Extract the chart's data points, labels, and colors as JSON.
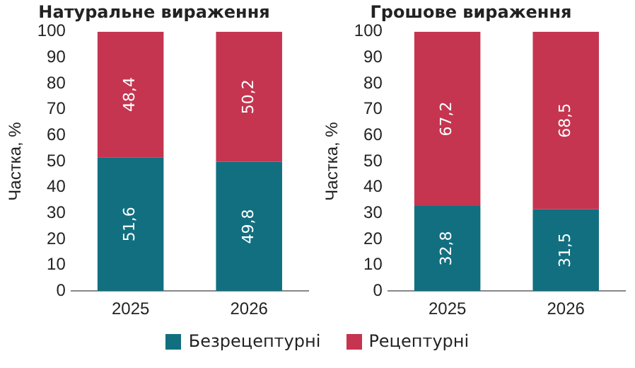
{
  "chart_data": [
    {
      "type": "bar",
      "title": "Натуральне вираження",
      "ylabel": "Частка, %",
      "categories": [
        "2025",
        "2026"
      ],
      "stacked": true,
      "ylim": [
        0,
        100
      ],
      "yticks": [
        0,
        10,
        20,
        30,
        40,
        50,
        60,
        70,
        80,
        90,
        100
      ],
      "grid": false,
      "legend": "bottom",
      "series": [
        {
          "name": "Безрецептурні",
          "color": "#116f80",
          "values": [
            51.6,
            49.8
          ],
          "value_labels": [
            "51,6",
            "49,8"
          ]
        },
        {
          "name": "Рецептурні",
          "color": "#c53550",
          "values": [
            48.4,
            50.2
          ],
          "value_labels": [
            "48,4",
            "50,2"
          ]
        }
      ]
    },
    {
      "type": "bar",
      "title": "Грошове вираження",
      "ylabel": "Частка, %",
      "categories": [
        "2025",
        "2026"
      ],
      "stacked": true,
      "ylim": [
        0,
        100
      ],
      "yticks": [
        0,
        10,
        20,
        30,
        40,
        50,
        60,
        70,
        80,
        90,
        100
      ],
      "grid": false,
      "series": [
        {
          "color": "#116f80",
          "values": [
            32.8,
            31.5
          ],
          "value_labels": [
            "32,8",
            "31,5"
          ]
        },
        {
          "color": "#c53550",
          "values": [
            67.2,
            68.5
          ],
          "value_labels": [
            "67,2",
            "68,5"
          ]
        }
      ]
    }
  ]
}
